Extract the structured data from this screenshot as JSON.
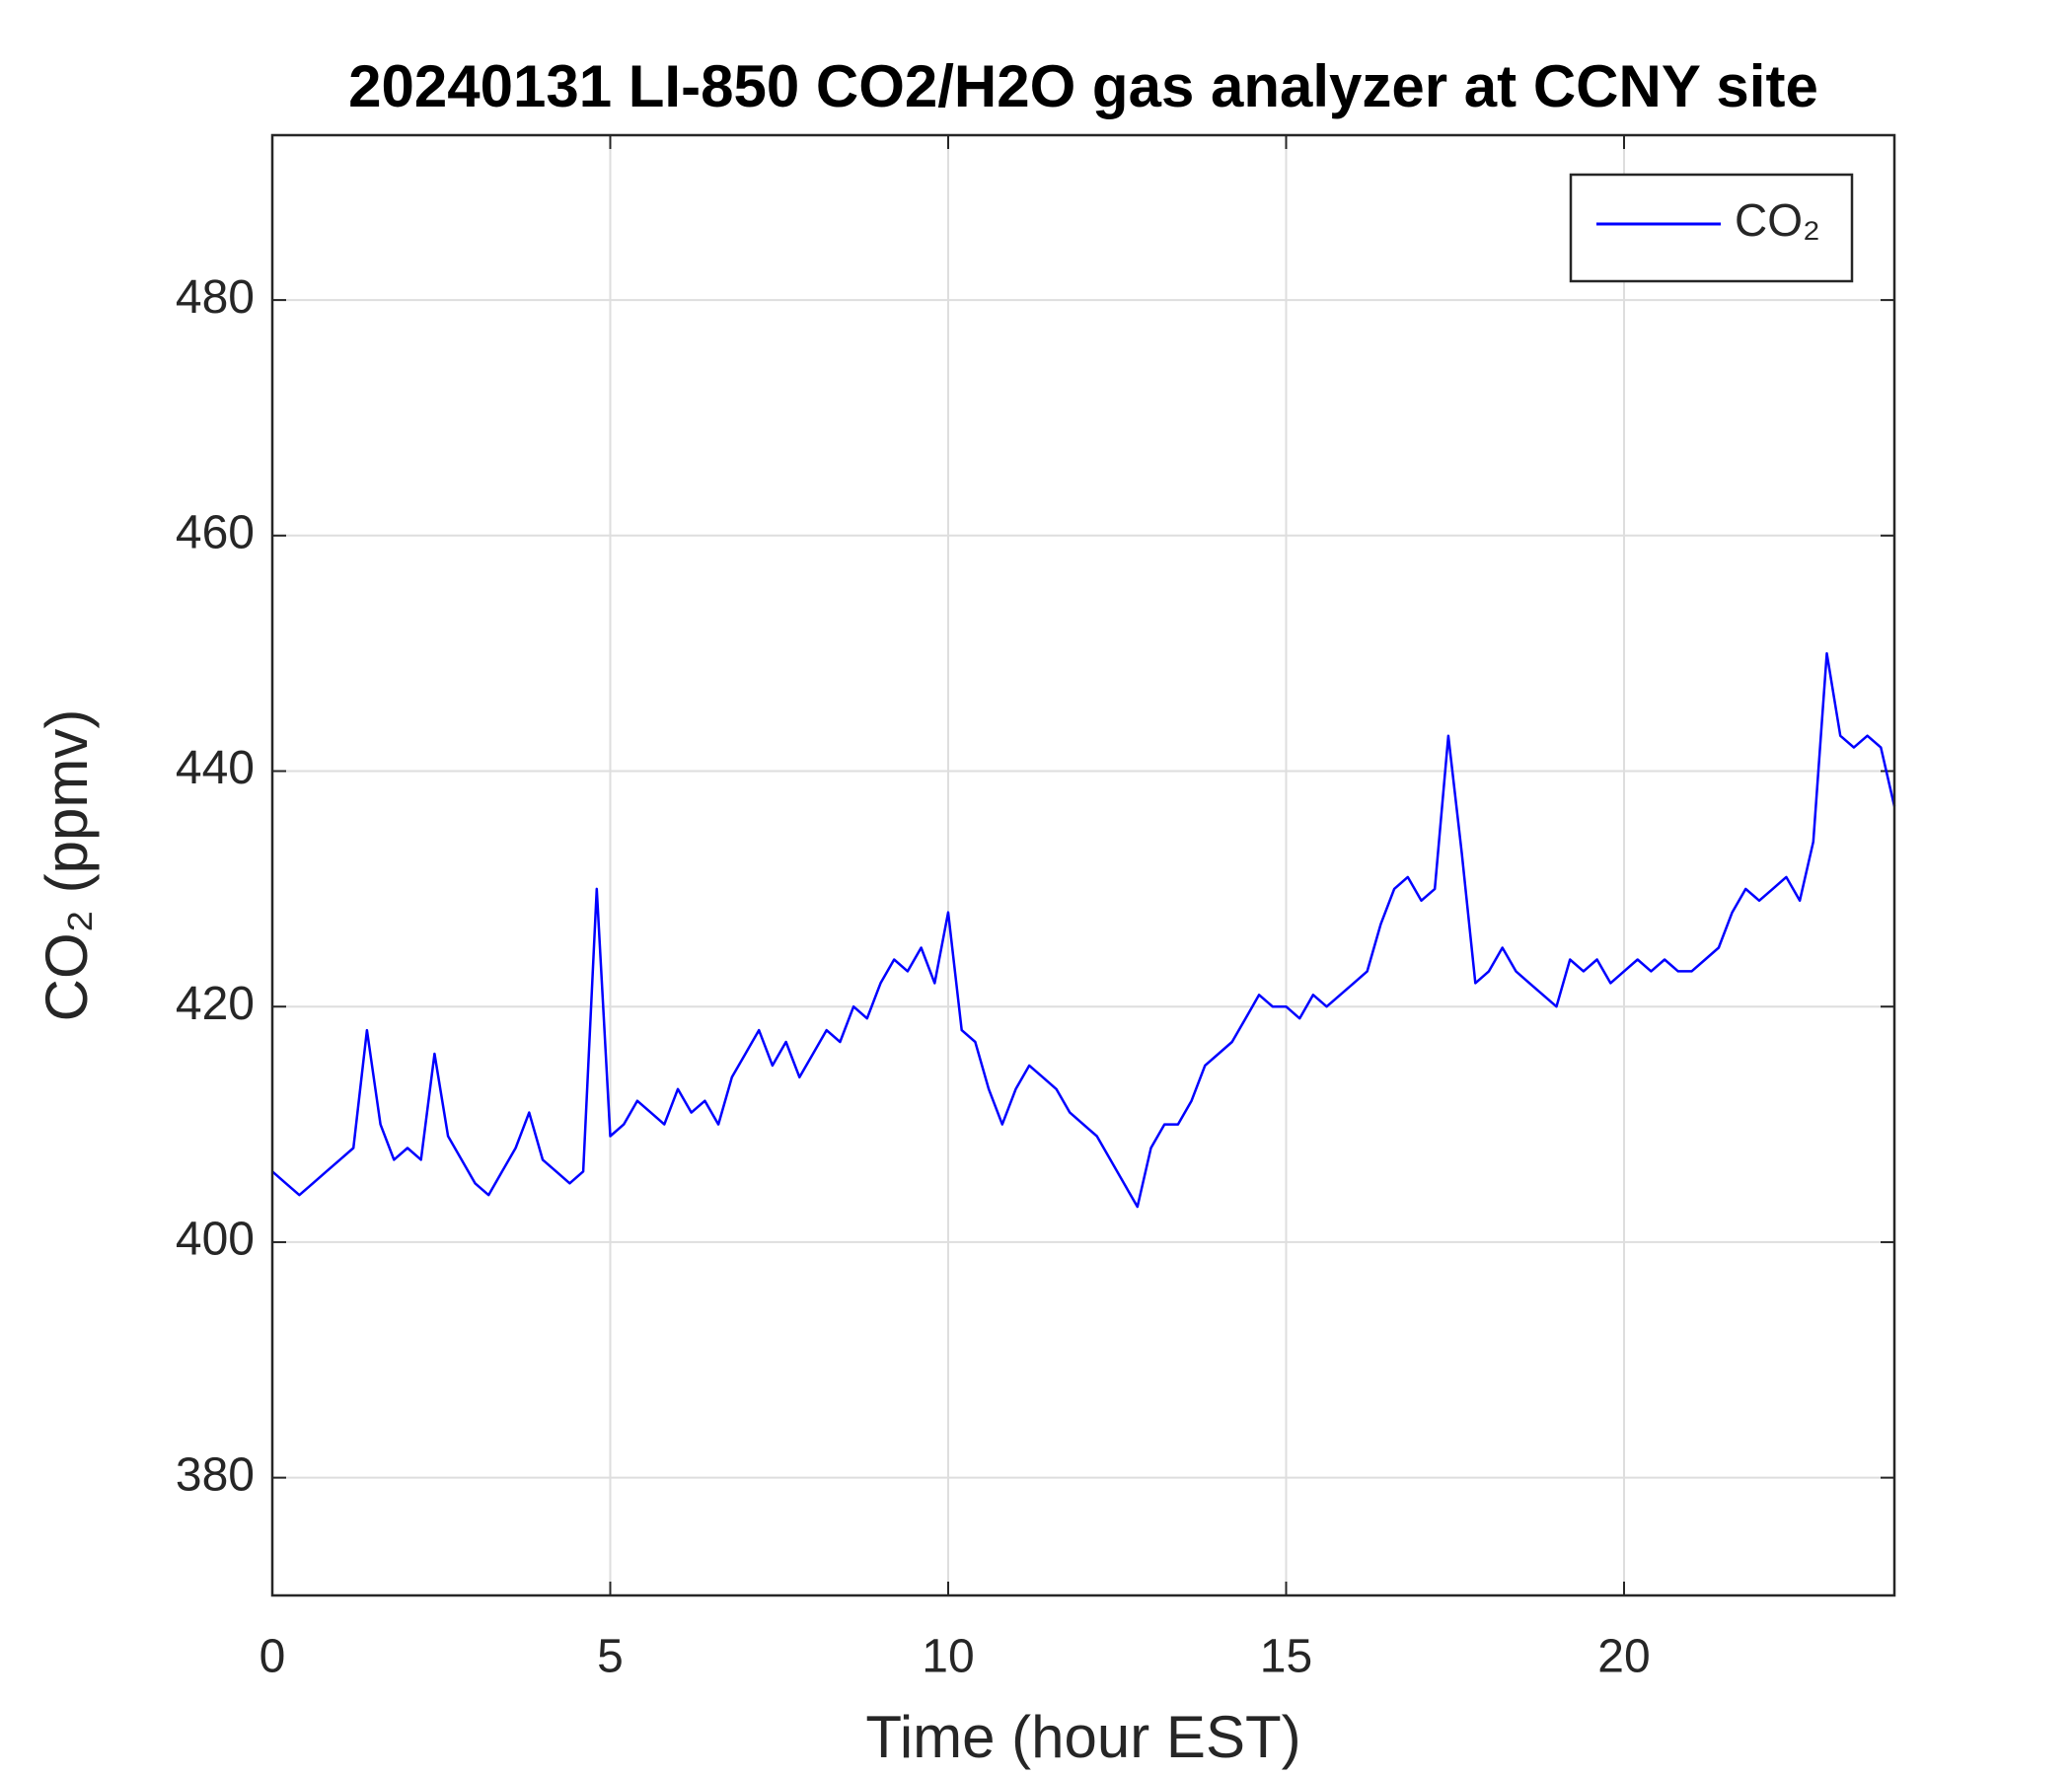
{
  "chart_data": {
    "type": "line",
    "title": "20240131 LI-850 CO2/H2O gas analyzer at CCNY site",
    "xlabel": "Time (hour EST)",
    "ylabel": "CO₂ (ppmv)",
    "x": [
      0,
      0.2,
      0.4,
      0.6,
      0.8,
      1,
      1.2,
      1.4,
      1.6,
      1.8,
      2,
      2.2,
      2.4,
      2.6,
      2.8,
      3,
      3.2,
      3.4,
      3.6,
      3.8,
      4,
      4.2,
      4.4,
      4.6,
      4.8,
      5,
      5.2,
      5.4,
      5.6,
      5.8,
      6,
      6.2,
      6.4,
      6.6,
      6.8,
      7,
      7.2,
      7.4,
      7.6,
      7.8,
      8,
      8.2,
      8.4,
      8.6,
      8.8,
      9,
      9.2,
      9.4,
      9.6,
      9.8,
      10,
      10.2,
      10.4,
      10.6,
      10.8,
      11,
      11.2,
      11.4,
      11.6,
      11.8,
      12,
      12.2,
      12.4,
      12.6,
      12.8,
      13,
      13.2,
      13.4,
      13.6,
      13.8,
      14,
      14.2,
      14.4,
      14.6,
      14.8,
      15,
      15.2,
      15.4,
      15.6,
      15.8,
      16,
      16.2,
      16.4,
      16.6,
      16.8,
      17,
      17.2,
      17.4,
      17.6,
      17.8,
      18,
      18.2,
      18.4,
      18.6,
      18.8,
      19,
      19.2,
      19.4,
      19.6,
      19.8,
      20,
      20.2,
      20.4,
      20.6,
      20.8,
      21,
      21.2,
      21.4,
      21.6,
      21.8,
      22,
      22.2,
      22.4,
      22.6,
      22.8,
      23,
      23.2,
      23.4,
      23.6,
      23.8,
      24
    ],
    "series": [
      {
        "name": "CO₂",
        "color": "#0000ff",
        "values": [
          406,
          405,
          404,
          405,
          406,
          407,
          408,
          418,
          410,
          407,
          408,
          407,
          416,
          409,
          407,
          405,
          404,
          406,
          408,
          411,
          407,
          406,
          405,
          406,
          430,
          409,
          410,
          412,
          411,
          410,
          413,
          411,
          412,
          410,
          414,
          416,
          418,
          415,
          417,
          414,
          416,
          418,
          417,
          420,
          419,
          422,
          424,
          423,
          425,
          422,
          428,
          418,
          417,
          413,
          410,
          413,
          415,
          414,
          413,
          411,
          410,
          409,
          407,
          405,
          403,
          408,
          410,
          410,
          412,
          415,
          416,
          417,
          419,
          421,
          420,
          420,
          419,
          421,
          420,
          421,
          422,
          423,
          427,
          430,
          431,
          429,
          430,
          443,
          433,
          422,
          423,
          425,
          423,
          422,
          421,
          420,
          424,
          423,
          424,
          422,
          423,
          424,
          423,
          424,
          423,
          423,
          424,
          425,
          428,
          430,
          429,
          430,
          431,
          429,
          434,
          450,
          443,
          442,
          443,
          442,
          437
        ]
      }
    ],
    "xlim": [
      0,
      24
    ],
    "xticks": [
      0,
      5,
      10,
      15,
      20
    ],
    "ylim": [
      370,
      494
    ],
    "yticks": [
      380,
      400,
      420,
      440,
      460,
      480
    ],
    "grid": true,
    "legend": "upper right"
  }
}
